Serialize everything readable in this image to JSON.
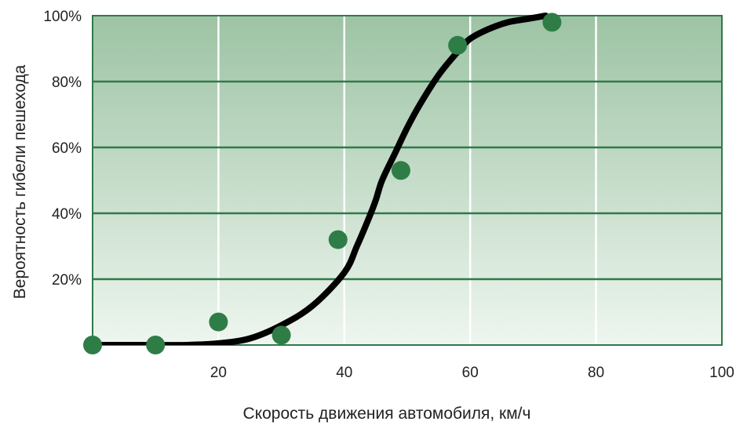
{
  "chart_data": {
    "type": "scatter",
    "title": "",
    "xlabel": "Скорость движения автомобиля, км/ч",
    "ylabel": "Вероятность гибели пешехода",
    "xlim": [
      0,
      100
    ],
    "ylim": [
      0,
      100
    ],
    "x_ticks": [
      {
        "value": 20,
        "label": "20"
      },
      {
        "value": 40,
        "label": "40"
      },
      {
        "value": 60,
        "label": "60"
      },
      {
        "value": 80,
        "label": "80"
      },
      {
        "value": 100,
        "label": "100"
      }
    ],
    "y_ticks": [
      {
        "value": 20,
        "label": "20%"
      },
      {
        "value": 40,
        "label": "40%"
      },
      {
        "value": 60,
        "label": "60%"
      },
      {
        "value": 80,
        "label": "80%"
      },
      {
        "value": 100,
        "label": "100%"
      }
    ],
    "grid": true,
    "series": [
      {
        "kind": "points",
        "x": [
          0,
          10,
          20,
          30,
          39,
          49,
          58,
          73
        ],
        "y": [
          0,
          0,
          7,
          3,
          32,
          53,
          91,
          98
        ]
      },
      {
        "kind": "curve",
        "x": [
          0,
          5,
          10,
          15,
          20,
          25,
          30,
          35,
          40,
          42,
          44,
          45,
          46,
          48,
          50,
          52,
          55,
          58,
          60,
          63,
          66,
          69,
          72
        ],
        "y": [
          0,
          0,
          0,
          0,
          0.5,
          2,
          6,
          12,
          22,
          30,
          39,
          44,
          50,
          58,
          66,
          73,
          82,
          89,
          93,
          96,
          98,
          99,
          100
        ]
      }
    ],
    "colors": {
      "plot_top": "#9dc3a4",
      "plot_bottom": "#eef6ef",
      "grid": "#ffffff",
      "axis": "#2e7a4a",
      "points": "#2e7d47",
      "curve": "#000000"
    }
  }
}
